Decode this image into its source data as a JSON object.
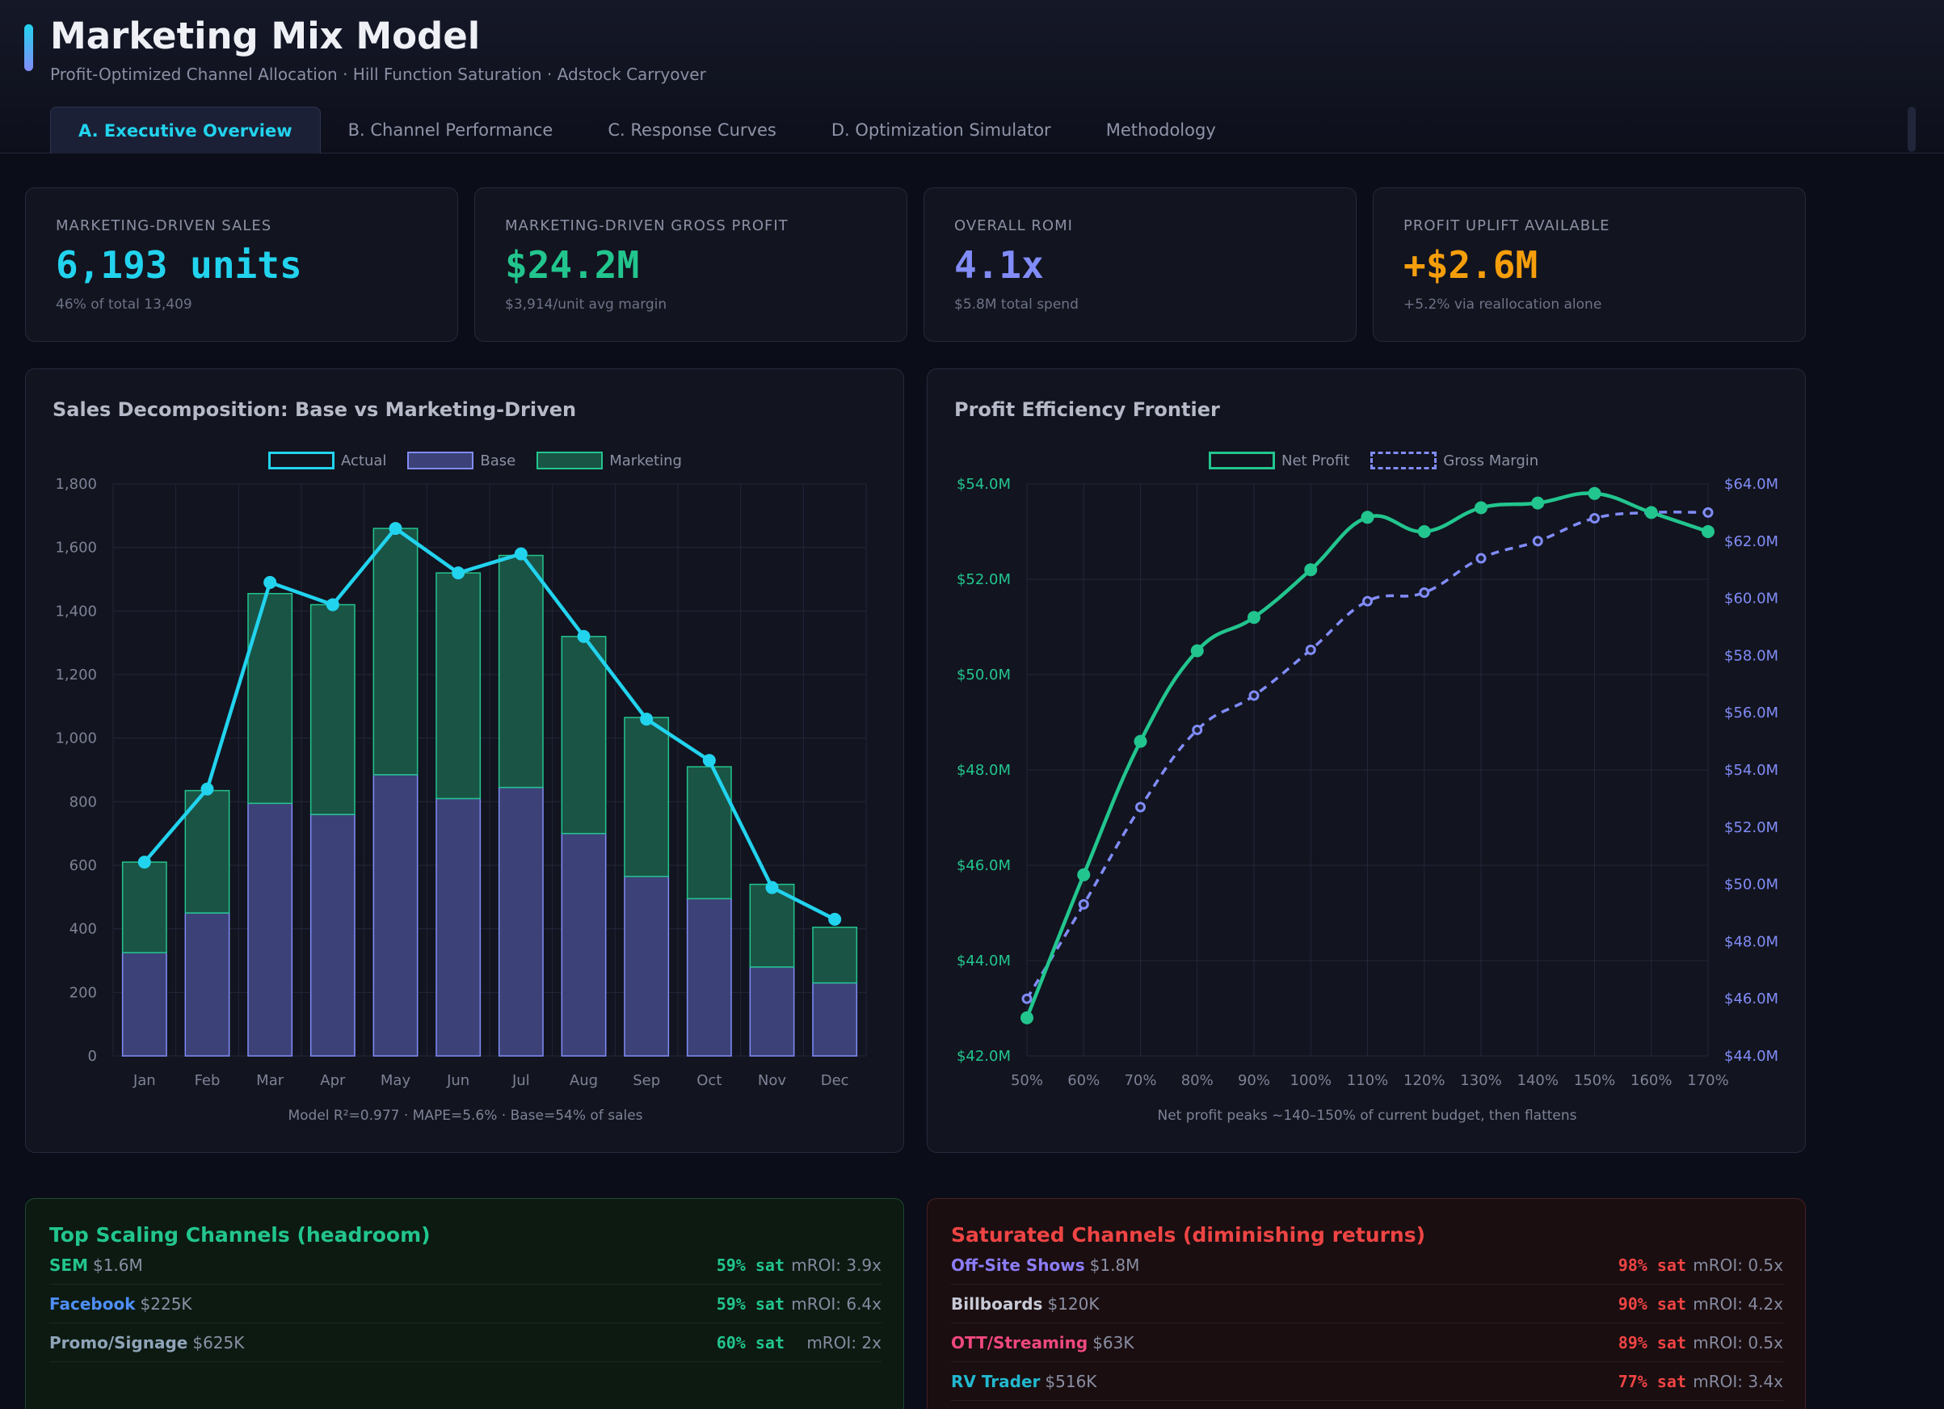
{
  "header": {
    "title": "Marketing Mix Model",
    "subtitle": "Profit-Optimized Channel Allocation · Hill Function Saturation · Adstock Carryover",
    "tabs": [
      {
        "label": "A. Executive Overview"
      },
      {
        "label": "B. Channel Performance"
      },
      {
        "label": "C. Response Curves"
      },
      {
        "label": "D. Optimization Simulator"
      },
      {
        "label": "Methodology"
      }
    ]
  },
  "kpis": [
    {
      "label": "MARKETING-DRIVEN SALES",
      "value": "6,193 units",
      "sub": "46% of total 13,409",
      "color": "#22d3ee"
    },
    {
      "label": "MARKETING-DRIVEN GROSS PROFIT",
      "value": "$24.2M",
      "sub": "$3,914/unit avg margin",
      "color": "#22c58e"
    },
    {
      "label": "OVERALL ROMI",
      "value": "4.1x",
      "sub": "$5.8M total spend",
      "color": "#818cf8"
    },
    {
      "label": "PROFIT UPLIFT AVAILABLE",
      "value": "+$2.6M",
      "sub": "+5.2% via reallocation alone",
      "color": "#f59e0b"
    }
  ],
  "chart_data": [
    {
      "type": "bar",
      "title": "Sales Decomposition: Base vs Marketing-Driven",
      "stacked": true,
      "categories": [
        "Jan",
        "Feb",
        "Mar",
        "Apr",
        "May",
        "Jun",
        "Jul",
        "Aug",
        "Sep",
        "Oct",
        "Nov",
        "Dec"
      ],
      "series": [
        {
          "name": "Actual",
          "type": "line",
          "values": [
            610,
            840,
            1490,
            1420,
            1660,
            1520,
            1580,
            1320,
            1060,
            930,
            530,
            430
          ]
        },
        {
          "name": "Base",
          "values": [
            325,
            450,
            795,
            760,
            885,
            810,
            845,
            700,
            565,
            495,
            280,
            230
          ]
        },
        {
          "name": "Marketing",
          "values": [
            285,
            385,
            660,
            660,
            775,
            710,
            730,
            620,
            500,
            415,
            260,
            175
          ]
        }
      ],
      "ylim": [
        0,
        1800
      ],
      "yticks": [
        "0",
        "200",
        "400",
        "600",
        "800",
        "1,000",
        "1,200",
        "1,400",
        "1,600",
        "1,800"
      ],
      "note": "Model R²=0.977 · MAPE=5.6% · Base=54% of sales",
      "colors": {
        "actual": "#22d3ee",
        "base": "#3c4277",
        "marketing": "#1a5445"
      }
    },
    {
      "type": "line",
      "title": "Profit Efficiency Frontier",
      "x": [
        "50%",
        "60%",
        "70%",
        "80%",
        "90%",
        "100%",
        "110%",
        "120%",
        "130%",
        "140%",
        "150%",
        "160%",
        "170%"
      ],
      "series": [
        {
          "name": "Net Profit",
          "axis": "left",
          "values": [
            42.8,
            45.8,
            48.6,
            50.5,
            51.2,
            52.2,
            53.3,
            53.0,
            53.5,
            53.6,
            53.8,
            53.4,
            53.0
          ]
        },
        {
          "name": "Gross Margin",
          "axis": "right",
          "values": [
            46.0,
            49.3,
            52.7,
            55.4,
            56.6,
            58.2,
            59.9,
            60.2,
            61.4,
            62.0,
            62.8,
            63.0,
            63.0
          ]
        }
      ],
      "ylim_left": [
        42,
        54
      ],
      "ylim_right": [
        44,
        64
      ],
      "yticks_left": [
        "$42.0M",
        "$44.0M",
        "$46.0M",
        "$48.0M",
        "$50.0M",
        "$52.0M",
        "$54.0M"
      ],
      "yticks_right": [
        "$44.0M",
        "$46.0M",
        "$48.0M",
        "$50.0M",
        "$52.0M",
        "$54.0M",
        "$56.0M",
        "$58.0M",
        "$60.0M",
        "$62.0M",
        "$64.0M"
      ],
      "note": "Net profit peaks ~140–150% of current budget, then flattens",
      "colors": {
        "net": "#22c58e",
        "gross": "#818cf8"
      }
    }
  ],
  "scaling": {
    "title": "Top Scaling Channels (headroom)",
    "rows": [
      {
        "name": "SEM",
        "spend": "$1.6M",
        "sat": "59% sat",
        "mroi": "mROI: 3.9x",
        "color": "#22c58e"
      },
      {
        "name": "Facebook",
        "spend": "$225K",
        "sat": "59% sat",
        "mroi": "mROI: 6.4x",
        "color": "#4f8ff7"
      },
      {
        "name": "Promo/Signage",
        "spend": "$625K",
        "sat": "60% sat",
        "mroi": "mROI: 2x",
        "color": "#8fa4b8"
      }
    ]
  },
  "saturated": {
    "title": "Saturated Channels (diminishing returns)",
    "rows": [
      {
        "name": "Off-Site Shows",
        "spend": "$1.8M",
        "sat": "98% sat",
        "mroi": "mROI: 0.5x",
        "color": "#8b7cf6"
      },
      {
        "name": "Billboards",
        "spend": "$120K",
        "sat": "90% sat",
        "mroi": "mROI: 4.2x",
        "color": "#c7cad6"
      },
      {
        "name": "OTT/Streaming",
        "spend": "$63K",
        "sat": "89% sat",
        "mroi": "mROI: 0.5x",
        "color": "#f0487f"
      },
      {
        "name": "RV Trader",
        "spend": "$516K",
        "sat": "77% sat",
        "mroi": "mROI: 3.4x",
        "color": "#22b8cf"
      }
    ]
  }
}
